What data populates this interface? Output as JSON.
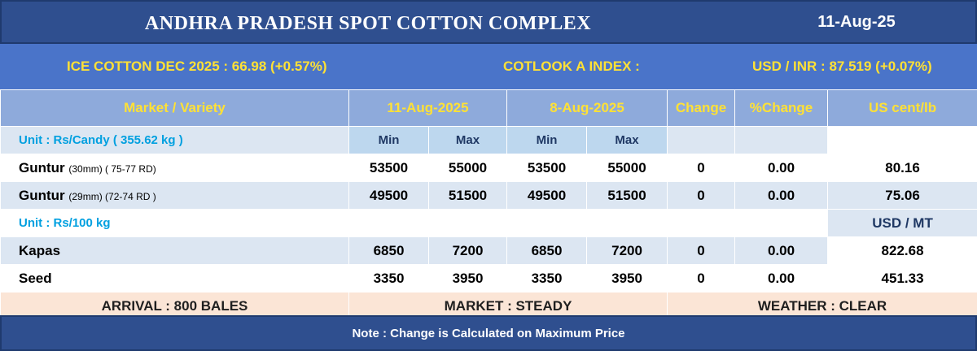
{
  "title": "ANDHRA PRADESH SPOT COTTON COMPLEX",
  "date": "11-Aug-25",
  "ice": "ICE COTTON DEC 2025 : 66.98 (+0.57%)",
  "cotlook": "COTLOOK A INDEX :",
  "usdinr": "USD / INR : 87.519 (+0.07%)",
  "headers": {
    "market": "Market / Variety",
    "date1": "11-Aug-2025",
    "date2": "8-Aug-2025",
    "change": "Change",
    "pct_change": "%Change",
    "us_cent": "US cent/lb",
    "min": "Min",
    "max": "Max"
  },
  "unit_candy": "Unit : Rs/Candy ( 355.62 kg )",
  "unit_100kg": "Unit : Rs/100 kg",
  "usd_mt": "USD / MT",
  "rows": [
    {
      "name": "Guntur",
      "spec": "(30mm) ( 75-77 RD)",
      "min1": "53500",
      "max1": "55000",
      "min2": "53500",
      "max2": "55000",
      "change": "0",
      "pct": "0.00",
      "usd": "80.16"
    },
    {
      "name": "Guntur",
      "spec": "(29mm) (72-74 RD )",
      "min1": "49500",
      "max1": "51500",
      "min2": "49500",
      "max2": "51500",
      "change": "0",
      "pct": "0.00",
      "usd": "75.06"
    },
    {
      "name": "Kapas",
      "spec": "",
      "min1": "6850",
      "max1": "7200",
      "min2": "6850",
      "max2": "7200",
      "change": "0",
      "pct": "0.00",
      "usd": "822.68"
    },
    {
      "name": "Seed",
      "spec": "",
      "min1": "3350",
      "max1": "3950",
      "min2": "3350",
      "max2": "3950",
      "change": "0",
      "pct": "0.00",
      "usd": "451.33"
    }
  ],
  "arrival": "ARRIVAL : 800 BALES",
  "market": "MARKET : STEADY",
  "weather": "WEATHER : CLEAR",
  "note": "Note : Change is Calculated on Maximum Price"
}
